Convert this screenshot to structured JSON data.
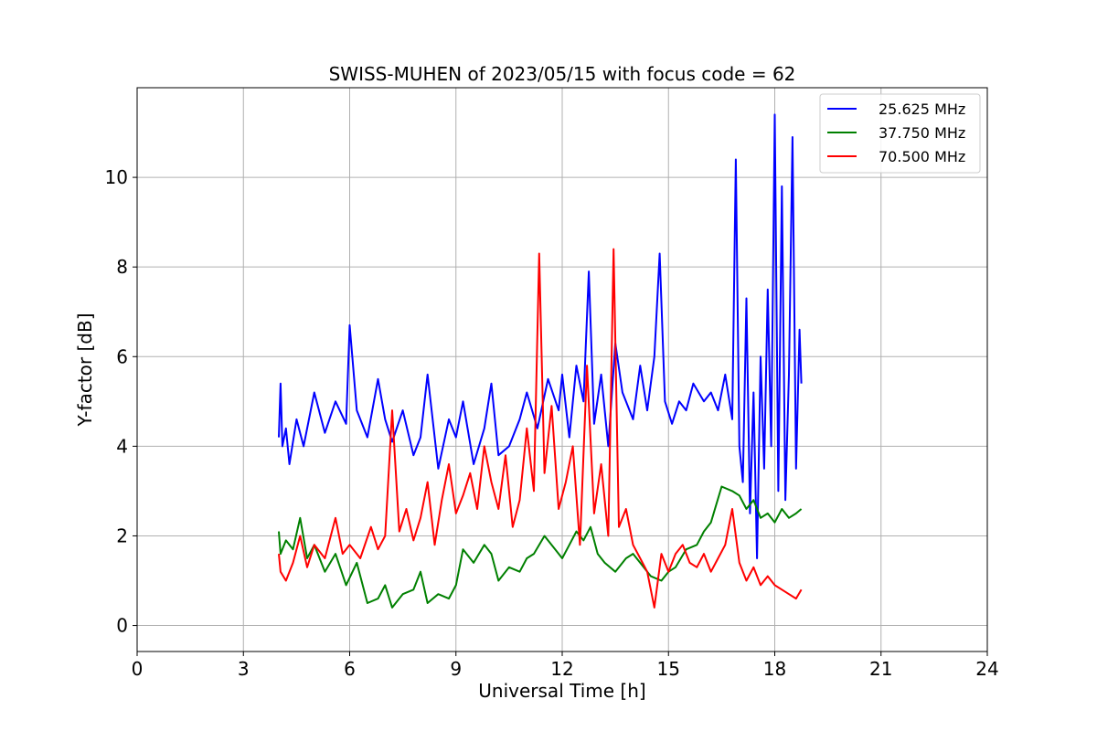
{
  "chart_data": {
    "type": "line",
    "title": "SWISS-MUHEN of 2023/05/15 with focus code = 62",
    "xlabel": "Universal Time [h]",
    "ylabel": "Y-factor [dB]",
    "xlim": [
      0,
      24
    ],
    "ylim": [
      -0.58,
      12.0
    ],
    "xticks": [
      0,
      3,
      6,
      9,
      12,
      15,
      18,
      21,
      24
    ],
    "yticks": [
      0,
      2,
      4,
      6,
      8,
      10
    ],
    "grid": true,
    "legend_position": "top-right",
    "series": [
      {
        "name": "25.625 MHz",
        "color": "#0000ff",
        "x": [
          4.0,
          4.05,
          4.1,
          4.2,
          4.3,
          4.5,
          4.7,
          5.0,
          5.3,
          5.6,
          5.9,
          6.0,
          6.2,
          6.5,
          6.8,
          7.0,
          7.2,
          7.5,
          7.8,
          8.0,
          8.2,
          8.5,
          8.8,
          9.0,
          9.2,
          9.5,
          9.8,
          10.0,
          10.2,
          10.5,
          10.8,
          11.0,
          11.3,
          11.6,
          11.9,
          12.0,
          12.2,
          12.4,
          12.6,
          12.75,
          12.9,
          13.1,
          13.3,
          13.5,
          13.7,
          14.0,
          14.2,
          14.4,
          14.6,
          14.75,
          14.9,
          15.1,
          15.3,
          15.5,
          15.7,
          16.0,
          16.2,
          16.4,
          16.6,
          16.8,
          16.9,
          17.0,
          17.1,
          17.2,
          17.3,
          17.4,
          17.5,
          17.6,
          17.7,
          17.8,
          17.9,
          18.0,
          18.1,
          18.2,
          18.3,
          18.4,
          18.5,
          18.6,
          18.7,
          18.75
        ],
        "y": [
          4.2,
          5.4,
          4.0,
          4.4,
          3.6,
          4.6,
          4.0,
          5.2,
          4.3,
          5.0,
          4.5,
          6.7,
          4.8,
          4.2,
          5.5,
          4.6,
          4.1,
          4.8,
          3.8,
          4.2,
          5.6,
          3.5,
          4.6,
          4.2,
          5.0,
          3.6,
          4.4,
          5.4,
          3.8,
          4.0,
          4.6,
          5.2,
          4.4,
          5.5,
          4.8,
          5.6,
          4.2,
          5.8,
          5.0,
          7.9,
          4.5,
          5.6,
          4.0,
          6.3,
          5.2,
          4.6,
          5.8,
          4.8,
          6.0,
          8.3,
          5.0,
          4.5,
          5.0,
          4.8,
          5.4,
          5.0,
          5.2,
          4.8,
          5.6,
          4.6,
          10.4,
          4.0,
          3.2,
          7.3,
          2.5,
          5.2,
          1.5,
          6.0,
          3.5,
          7.5,
          4.0,
          11.4,
          3.0,
          9.8,
          2.8,
          5.6,
          10.9,
          3.5,
          6.6,
          5.4
        ]
      },
      {
        "name": "37.750 MHz",
        "color": "#008000",
        "x": [
          4.0,
          4.05,
          4.2,
          4.4,
          4.6,
          4.8,
          5.0,
          5.3,
          5.6,
          5.9,
          6.2,
          6.5,
          6.8,
          7.0,
          7.2,
          7.5,
          7.8,
          8.0,
          8.2,
          8.5,
          8.8,
          9.0,
          9.2,
          9.5,
          9.8,
          10.0,
          10.2,
          10.5,
          10.8,
          11.0,
          11.2,
          11.5,
          11.8,
          12.0,
          12.2,
          12.4,
          12.6,
          12.8,
          13.0,
          13.2,
          13.5,
          13.8,
          14.0,
          14.2,
          14.5,
          14.8,
          15.0,
          15.2,
          15.5,
          15.8,
          16.0,
          16.2,
          16.5,
          16.8,
          17.0,
          17.2,
          17.4,
          17.6,
          17.8,
          18.0,
          18.2,
          18.4,
          18.6,
          18.75
        ],
        "y": [
          2.1,
          1.6,
          1.9,
          1.7,
          2.4,
          1.5,
          1.8,
          1.2,
          1.6,
          0.9,
          1.4,
          0.5,
          0.6,
          0.9,
          0.4,
          0.7,
          0.8,
          1.2,
          0.5,
          0.7,
          0.6,
          0.9,
          1.7,
          1.4,
          1.8,
          1.6,
          1.0,
          1.3,
          1.2,
          1.5,
          1.6,
          2.0,
          1.7,
          1.5,
          1.8,
          2.1,
          1.9,
          2.2,
          1.6,
          1.4,
          1.2,
          1.5,
          1.6,
          1.4,
          1.1,
          1.0,
          1.2,
          1.3,
          1.7,
          1.8,
          2.1,
          2.3,
          3.1,
          3.0,
          2.9,
          2.6,
          2.8,
          2.4,
          2.5,
          2.3,
          2.6,
          2.4,
          2.5,
          2.6
        ]
      },
      {
        "name": "70.500 MHz",
        "color": "#ff0000",
        "x": [
          4.0,
          4.05,
          4.2,
          4.4,
          4.6,
          4.8,
          5.0,
          5.3,
          5.6,
          5.8,
          6.0,
          6.3,
          6.6,
          6.8,
          7.0,
          7.2,
          7.4,
          7.6,
          7.8,
          8.0,
          8.2,
          8.4,
          8.6,
          8.8,
          9.0,
          9.2,
          9.4,
          9.6,
          9.8,
          10.0,
          10.2,
          10.4,
          10.6,
          10.8,
          11.0,
          11.2,
          11.35,
          11.5,
          11.7,
          11.9,
          12.1,
          12.3,
          12.5,
          12.7,
          12.9,
          13.1,
          13.3,
          13.45,
          13.6,
          13.8,
          14.0,
          14.2,
          14.4,
          14.6,
          14.8,
          15.0,
          15.2,
          15.4,
          15.6,
          15.8,
          16.0,
          16.2,
          16.4,
          16.6,
          16.8,
          17.0,
          17.2,
          17.4,
          17.6,
          17.8,
          18.0,
          18.2,
          18.4,
          18.6,
          18.75
        ],
        "y": [
          1.6,
          1.2,
          1.0,
          1.4,
          2.0,
          1.3,
          1.8,
          1.5,
          2.4,
          1.6,
          1.8,
          1.5,
          2.2,
          1.7,
          2.0,
          4.8,
          2.1,
          2.6,
          1.9,
          2.4,
          3.2,
          1.8,
          2.8,
          3.6,
          2.5,
          2.9,
          3.4,
          2.6,
          4.0,
          3.2,
          2.6,
          3.8,
          2.2,
          2.8,
          4.4,
          3.0,
          8.3,
          3.4,
          4.9,
          2.6,
          3.2,
          4.0,
          1.8,
          5.8,
          2.5,
          3.6,
          2.0,
          8.4,
          2.2,
          2.6,
          1.8,
          1.5,
          1.2,
          0.4,
          1.6,
          1.2,
          1.6,
          1.8,
          1.4,
          1.3,
          1.6,
          1.2,
          1.5,
          1.8,
          2.6,
          1.4,
          1.0,
          1.3,
          0.9,
          1.1,
          0.9,
          0.8,
          0.7,
          0.6,
          0.8
        ]
      }
    ]
  }
}
